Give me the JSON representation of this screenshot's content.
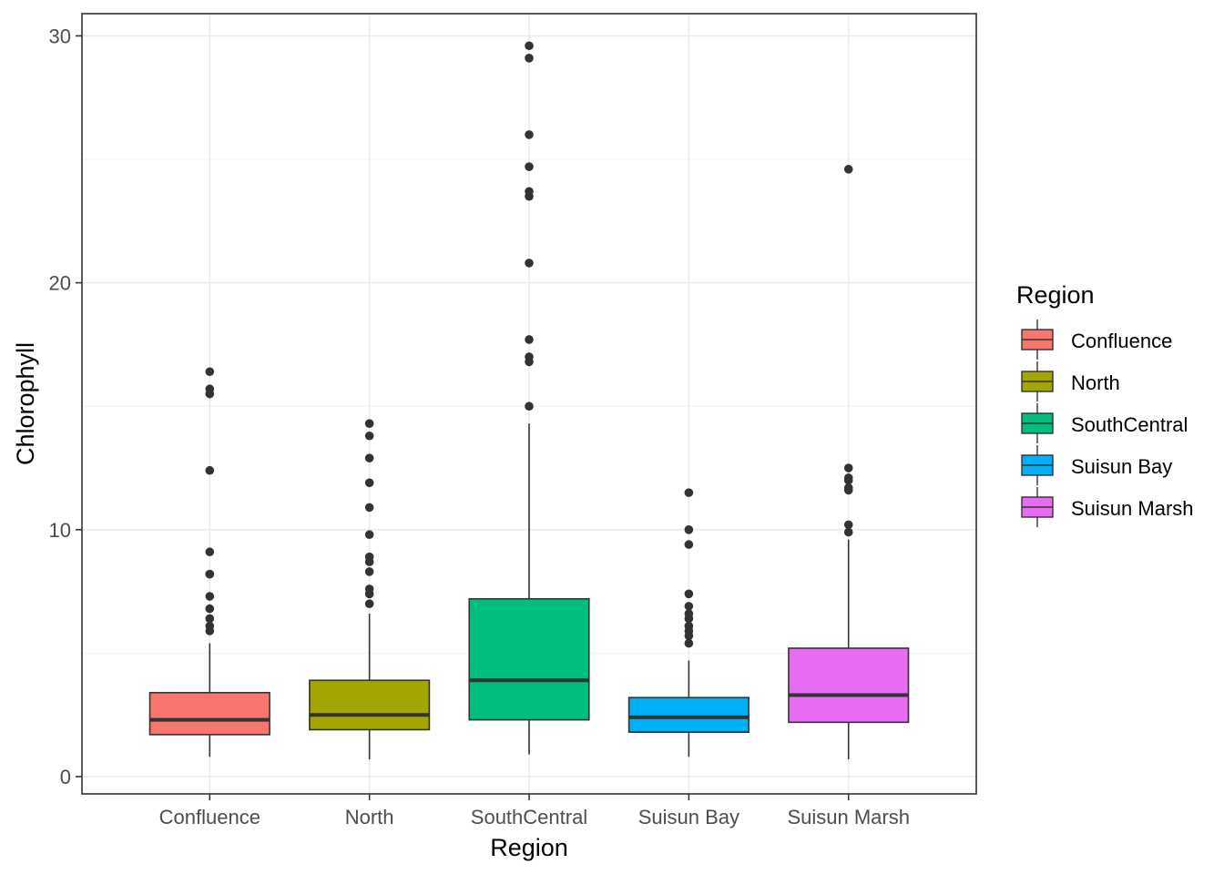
{
  "chart_data": {
    "type": "boxplot",
    "title": "",
    "xlabel": "Region",
    "ylabel": "Chlorophyll",
    "ylim": [
      -0.7,
      30.9
    ],
    "y_ticks": [
      0,
      10,
      20,
      30
    ],
    "y_tick_labels": [
      "0",
      "10",
      "20",
      "30"
    ],
    "y_minor_ticks": [
      5,
      15,
      25
    ],
    "grid": true,
    "legend": {
      "title": "Region",
      "position": "right"
    },
    "categories": [
      "Confluence",
      "North",
      "SouthCentral",
      "Suisun Bay",
      "Suisun Marsh"
    ],
    "colors": [
      "#F8766D",
      "#A3A500",
      "#00BF7D",
      "#00B0F6",
      "#E76BF3"
    ],
    "boxes": [
      {
        "name": "Confluence",
        "whisker_low": 0.8,
        "q1": 1.7,
        "median": 2.3,
        "q3": 3.4,
        "whisker_high": 5.4,
        "outliers": [
          5.9,
          6.1,
          6.4,
          6.8,
          7.3,
          8.2,
          8.2,
          9.1,
          12.4,
          15.5,
          15.7,
          16.4
        ]
      },
      {
        "name": "North",
        "whisker_low": 0.7,
        "q1": 1.9,
        "median": 2.5,
        "q3": 3.9,
        "whisker_high": 6.6,
        "outliers": [
          7.0,
          7.4,
          7.6,
          8.3,
          8.7,
          8.9,
          9.8,
          10.9,
          11.9,
          12.9,
          13.8,
          14.3
        ]
      },
      {
        "name": "SouthCentral",
        "whisker_low": 0.9,
        "q1": 2.3,
        "median": 3.9,
        "q3": 7.2,
        "whisker_high": 14.3,
        "outliers": [
          15.0,
          16.8,
          17.0,
          17.7,
          20.8,
          23.5,
          23.7,
          24.7,
          26.0,
          29.1,
          29.6
        ]
      },
      {
        "name": "Suisun Bay",
        "whisker_low": 0.8,
        "q1": 1.8,
        "median": 2.4,
        "q3": 3.2,
        "whisker_high": 4.7,
        "outliers": [
          5.4,
          5.7,
          5.9,
          6.1,
          6.4,
          6.6,
          6.9,
          7.4,
          9.4,
          10.0,
          11.5
        ]
      },
      {
        "name": "Suisun Marsh",
        "whisker_low": 0.7,
        "q1": 2.2,
        "median": 3.3,
        "q3": 5.2,
        "whisker_high": 9.6,
        "outliers": [
          9.9,
          10.2,
          11.6,
          11.7,
          12.0,
          12.1,
          12.5,
          24.6
        ]
      }
    ]
  }
}
